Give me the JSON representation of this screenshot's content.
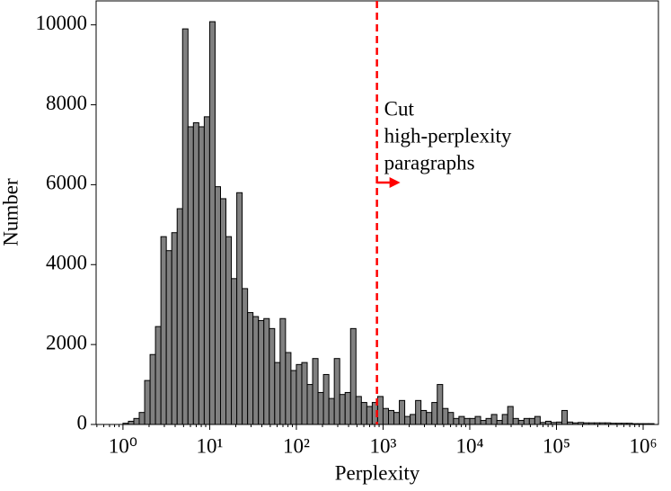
{
  "chart_data": {
    "type": "histogram",
    "x_label": "Perplexity",
    "y_label": "Number",
    "xscale": "log",
    "bins": [
      1,
      1.155,
      1.334,
      1.54,
      1.778,
      2.054,
      2.371,
      2.738,
      3.162,
      3.652,
      4.217,
      4.87,
      5.623,
      6.494,
      7.499,
      8.66,
      10,
      11.55,
      13.34,
      15.4,
      17.78,
      20.54,
      23.71,
      27.38,
      31.62,
      36.52,
      42.17,
      48.7,
      56.23,
      64.94,
      74.99,
      86.6,
      100,
      115.5,
      133.4,
      154,
      177.8,
      205.4,
      237.1,
      273.8,
      316.2,
      365.2,
      421.7,
      487,
      562.3,
      649.4,
      749.9,
      866,
      1000,
      1155,
      1334,
      1540,
      1778,
      2054,
      2371,
      2738,
      3162,
      3652,
      4217,
      4870,
      5623,
      6494,
      7499,
      8660,
      10000,
      11550,
      13340,
      15400,
      17780,
      20540,
      23710,
      27380,
      31620,
      36520,
      42170,
      48700,
      56230,
      64940,
      74990,
      86600,
      100000,
      115500,
      133400,
      154000,
      177800,
      205400,
      237100,
      273800,
      316200,
      365200,
      421700,
      487000,
      562300,
      649400,
      749900,
      866000,
      1000000,
      1155000,
      1334000
    ],
    "counts": [
      30,
      80,
      150,
      300,
      1100,
      1750,
      2450,
      4700,
      4350,
      4800,
      5400,
      9900,
      7450,
      7550,
      7450,
      7700,
      10080,
      5950,
      5650,
      4700,
      3650,
      5800,
      3400,
      2800,
      2700,
      2600,
      2650,
      2400,
      1550,
      2650,
      1800,
      1350,
      1500,
      1550,
      1000,
      1650,
      800,
      1250,
      650,
      1650,
      750,
      800,
      2400,
      700,
      550,
      450,
      550,
      700,
      400,
      350,
      300,
      600,
      200,
      250,
      600,
      350,
      300,
      550,
      1000,
      400,
      300,
      150,
      200,
      150,
      150,
      200,
      100,
      150,
      250,
      100,
      250,
      450,
      150,
      100,
      150,
      150,
      200,
      50,
      80,
      50,
      60,
      350,
      60,
      40,
      50,
      40,
      40,
      40,
      40,
      40,
      30,
      30,
      30,
      30,
      20,
      20,
      20,
      20
    ],
    "bar_color": "#808080",
    "cutoff": 850,
    "cutoff_color": "#ff0000",
    "annotation": [
      "Cut",
      "high-perplexity",
      "paragraphs"
    ],
    "xlim": [
      0.49,
      1500000
    ],
    "ylim": [
      0,
      10600
    ],
    "xticks": [
      {
        "value": 1,
        "label": "10⁰"
      },
      {
        "value": 10,
        "label": "10¹"
      },
      {
        "value": 100,
        "label": "10²"
      },
      {
        "value": 1000,
        "label": "10³"
      },
      {
        "value": 10000,
        "label": "10⁴"
      },
      {
        "value": 100000,
        "label": "10⁵"
      },
      {
        "value": 1000000,
        "label": "10⁶"
      }
    ],
    "yticks": [
      0,
      2000,
      4000,
      6000,
      8000,
      10000
    ]
  }
}
